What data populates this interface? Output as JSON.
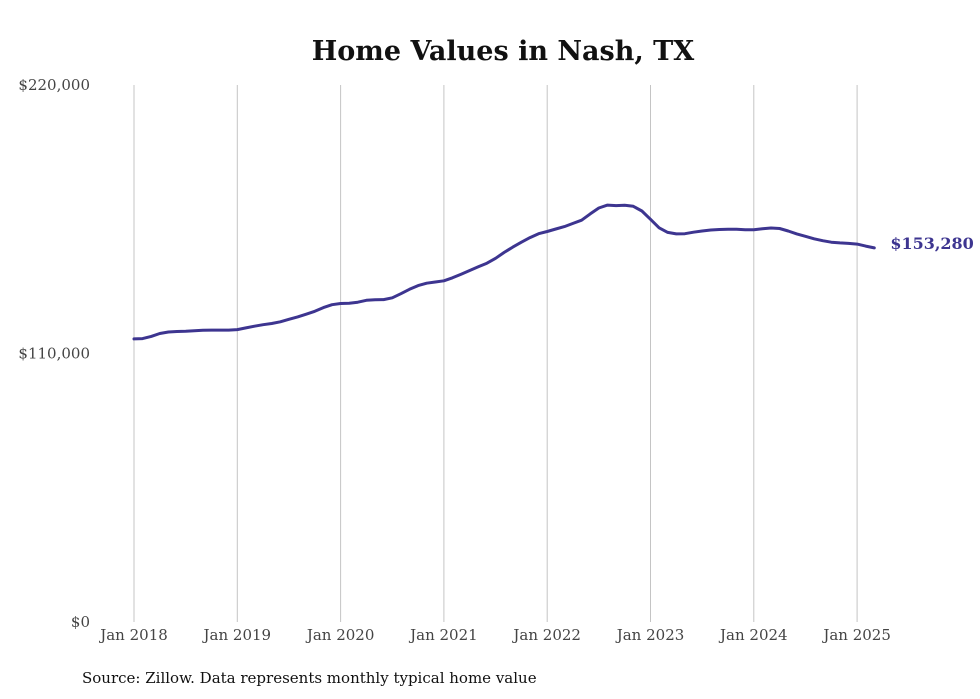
{
  "chart_data": {
    "type": "line",
    "title": "Home Values in Nash, TX",
    "source": "Source: Zillow. Data represents monthly typical home value",
    "ylim": [
      0,
      220000
    ],
    "y_ticks": [
      {
        "value": 0,
        "label": "$0"
      },
      {
        "value": 110000,
        "label": "$110,000"
      },
      {
        "value": 220000,
        "label": "$220,000"
      }
    ],
    "x_ticks": [
      {
        "value": "2018-01",
        "label": "Jan 2018"
      },
      {
        "value": "2019-01",
        "label": "Jan 2019"
      },
      {
        "value": "2020-01",
        "label": "Jan 2020"
      },
      {
        "value": "2021-01",
        "label": "Jan 2021"
      },
      {
        "value": "2022-01",
        "label": "Jan 2022"
      },
      {
        "value": "2023-01",
        "label": "Jan 2023"
      },
      {
        "value": "2024-01",
        "label": "Jan 2024"
      },
      {
        "value": "2025-01",
        "label": "Jan 2025"
      }
    ],
    "grid": {
      "vertical": true,
      "horizontal": false
    },
    "series": [
      {
        "color": "#3d3590",
        "end_label": "$153,280",
        "points": [
          [
            "2018-01",
            116000
          ],
          [
            "2018-02",
            116100
          ],
          [
            "2018-03",
            117000
          ],
          [
            "2018-04",
            118200
          ],
          [
            "2018-05",
            118800
          ],
          [
            "2018-06",
            119000
          ],
          [
            "2018-07",
            119100
          ],
          [
            "2018-08",
            119300
          ],
          [
            "2018-09",
            119500
          ],
          [
            "2018-10",
            119600
          ],
          [
            "2018-11",
            119600
          ],
          [
            "2018-12",
            119600
          ],
          [
            "2019-01",
            119800
          ],
          [
            "2019-02",
            120500
          ],
          [
            "2019-03",
            121200
          ],
          [
            "2019-04",
            121800
          ],
          [
            "2019-05",
            122300
          ],
          [
            "2019-06",
            123000
          ],
          [
            "2019-07",
            124000
          ],
          [
            "2019-08",
            125000
          ],
          [
            "2019-09",
            126100
          ],
          [
            "2019-10",
            127300
          ],
          [
            "2019-11",
            128800
          ],
          [
            "2019-12",
            130000
          ],
          [
            "2020-01",
            130500
          ],
          [
            "2020-02",
            130600
          ],
          [
            "2020-03",
            131000
          ],
          [
            "2020-04",
            131800
          ],
          [
            "2020-05",
            132000
          ],
          [
            "2020-06",
            132100
          ],
          [
            "2020-07",
            132800
          ],
          [
            "2020-08",
            134500
          ],
          [
            "2020-09",
            136300
          ],
          [
            "2020-10",
            137800
          ],
          [
            "2020-11",
            138800
          ],
          [
            "2020-12",
            139300
          ],
          [
            "2021-01",
            139800
          ],
          [
            "2021-02",
            141000
          ],
          [
            "2021-03",
            142500
          ],
          [
            "2021-04",
            144000
          ],
          [
            "2021-05",
            145500
          ],
          [
            "2021-06",
            147000
          ],
          [
            "2021-07",
            149000
          ],
          [
            "2021-08",
            151400
          ],
          [
            "2021-09",
            153600
          ],
          [
            "2021-10",
            155600
          ],
          [
            "2021-11",
            157500
          ],
          [
            "2021-12",
            159100
          ],
          [
            "2022-01",
            160000
          ],
          [
            "2022-02",
            161000
          ],
          [
            "2022-03",
            162000
          ],
          [
            "2022-04",
            163300
          ],
          [
            "2022-05",
            164600
          ],
          [
            "2022-06",
            167200
          ],
          [
            "2022-07",
            169600
          ],
          [
            "2022-08",
            170800
          ],
          [
            "2022-09",
            170600
          ],
          [
            "2022-10",
            170700
          ],
          [
            "2022-11",
            170300
          ],
          [
            "2022-12",
            168400
          ],
          [
            "2023-01",
            165000
          ],
          [
            "2023-02",
            161500
          ],
          [
            "2023-03",
            159600
          ],
          [
            "2023-04",
            159000
          ],
          [
            "2023-05",
            159100
          ],
          [
            "2023-06",
            159700
          ],
          [
            "2023-07",
            160200
          ],
          [
            "2023-08",
            160600
          ],
          [
            "2023-09",
            160800
          ],
          [
            "2023-10",
            160900
          ],
          [
            "2023-11",
            160900
          ],
          [
            "2023-12",
            160700
          ],
          [
            "2024-01",
            160700
          ],
          [
            "2024-02",
            161100
          ],
          [
            "2024-03",
            161400
          ],
          [
            "2024-04",
            161200
          ],
          [
            "2024-05",
            160200
          ],
          [
            "2024-06",
            159000
          ],
          [
            "2024-07",
            158000
          ],
          [
            "2024-08",
            157000
          ],
          [
            "2024-09",
            156200
          ],
          [
            "2024-10",
            155600
          ],
          [
            "2024-11",
            155300
          ],
          [
            "2024-12",
            155100
          ],
          [
            "2025-01",
            154800
          ],
          [
            "2025-02",
            154000
          ],
          [
            "2025-03",
            153280
          ]
        ]
      }
    ]
  }
}
